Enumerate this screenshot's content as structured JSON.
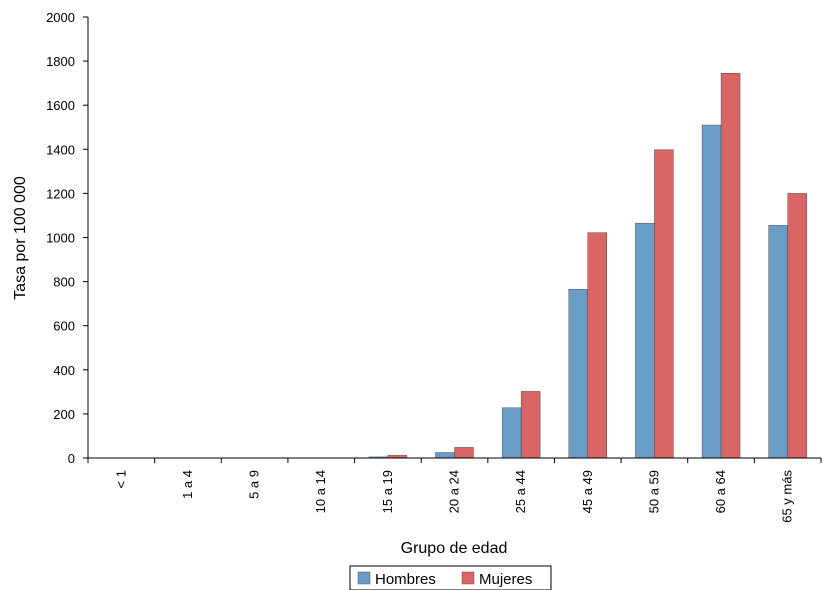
{
  "chart_data": {
    "type": "bar",
    "title": "",
    "xlabel": "Grupo de edad",
    "ylabel": "Tasa por 100 000",
    "ylim": [
      0,
      2000
    ],
    "yticks": [
      0,
      200,
      400,
      600,
      800,
      1000,
      1200,
      1400,
      1600,
      1800,
      2000
    ],
    "categories": [
      "< 1",
      "1 a 4",
      "5 a 9",
      "10 a 14",
      "15 a 19",
      "20 a 24",
      "25 a 44",
      "45 a 49",
      "50 a 59",
      "60 a 64",
      "65 y más"
    ],
    "series": [
      {
        "name": "Hombres",
        "color": "#6a9cc8",
        "values": [
          0,
          0,
          0,
          0,
          5,
          25,
          228,
          765,
          1065,
          1510,
          1055
        ]
      },
      {
        "name": "Mujeres",
        "color": "#d96564",
        "values": [
          0,
          0,
          0,
          0,
          12,
          48,
          302,
          1022,
          1398,
          1745,
          1200
        ]
      }
    ],
    "grid": false,
    "legend_position": "bottom"
  }
}
